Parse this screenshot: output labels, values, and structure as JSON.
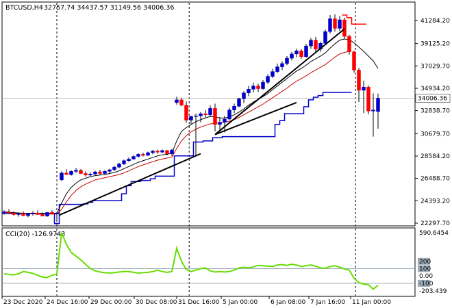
{
  "chart_data": [
    {
      "type": "candlestick",
      "title": "BTCUSD,H4",
      "ohlc_readout": "32757.74 34437.57 31149.56 34006.36",
      "current_price": "34006.36",
      "yticks": [
        "41284.20",
        "39125.20",
        "37029.70",
        "34934.20",
        "32838.70",
        "30679.70",
        "28584.20",
        "26488.70",
        "24393.20",
        "22297.70"
      ],
      "xticks": [
        "23 Dec 2020",
        "24 Dec 16:00",
        "29 Dec 00:00",
        "30 Dec 08:00",
        "31 Dec 16:00",
        "5 Jan 00:00",
        "6 Jan 08:00",
        "7 Jan 16:00",
        "11 Jan 00:00"
      ],
      "ylim": [
        22297.7,
        41284.2
      ],
      "candles": [
        [
          23300,
          23500,
          23100,
          23350
        ],
        [
          23350,
          23600,
          23150,
          23250
        ],
        [
          23250,
          23400,
          23000,
          23100
        ],
        [
          23100,
          23300,
          22900,
          23200
        ],
        [
          23200,
          23400,
          22950,
          23000
        ],
        [
          23000,
          23250,
          22850,
          23150
        ],
        [
          23150,
          23400,
          23000,
          23250
        ],
        [
          23250,
          23500,
          23100,
          23100
        ],
        [
          23100,
          23300,
          22950,
          22950
        ],
        [
          22950,
          23350,
          22900,
          23300
        ],
        [
          23300,
          23500,
          23100,
          23150
        ],
        [
          23150,
          23350,
          22500,
          23250
        ],
        [
          26350,
          27150,
          26250,
          27000
        ],
        [
          27000,
          27350,
          26850,
          26850
        ],
        [
          26850,
          27250,
          26750,
          27150
        ],
        [
          27150,
          27450,
          27000,
          27250
        ],
        [
          27250,
          27350,
          26900,
          26950
        ],
        [
          26950,
          27150,
          26650,
          26800
        ],
        [
          26800,
          27050,
          26700,
          26900
        ],
        [
          26900,
          27200,
          26800,
          27100
        ],
        [
          27100,
          27300,
          26850,
          26950
        ],
        [
          26950,
          27250,
          26850,
          27150
        ],
        [
          27150,
          27400,
          27000,
          27300
        ],
        [
          27300,
          27650,
          27200,
          27550
        ],
        [
          27550,
          27950,
          27450,
          27850
        ],
        [
          27850,
          28250,
          27750,
          28150
        ],
        [
          28150,
          28450,
          28050,
          28300
        ],
        [
          28300,
          28650,
          28250,
          28550
        ],
        [
          28550,
          28850,
          28450,
          28750
        ],
        [
          28750,
          28900,
          28550,
          28650
        ],
        [
          28650,
          29000,
          28600,
          28900
        ],
        [
          28900,
          29150,
          28750,
          29050
        ],
        [
          29050,
          29200,
          28800,
          28950
        ],
        [
          28950,
          29200,
          28850,
          29100
        ],
        [
          29100,
          29150,
          28650,
          28800
        ],
        [
          28800,
          29250,
          28600,
          29150
        ],
        [
          33600,
          34150,
          33400,
          33850
        ],
        [
          33850,
          34050,
          33250,
          33350
        ],
        [
          33350,
          33700,
          31700,
          31950
        ],
        [
          31950,
          32350,
          31550,
          32300
        ],
        [
          32300,
          32550,
          28600,
          32350
        ],
        [
          32350,
          32700,
          31750,
          32550
        ],
        [
          32550,
          32900,
          32200,
          32450
        ],
        [
          32450,
          33350,
          32250,
          33050
        ],
        [
          33050,
          33500,
          30900,
          31550
        ],
        [
          31550,
          32250,
          31050,
          31750
        ],
        [
          31750,
          32350,
          30800,
          32050
        ],
        [
          32050,
          33100,
          31950,
          32900
        ],
        [
          32900,
          33500,
          32600,
          33250
        ],
        [
          33250,
          34050,
          33150,
          33950
        ],
        [
          33950,
          34650,
          33550,
          34500
        ],
        [
          34500,
          35150,
          34200,
          34850
        ],
        [
          34850,
          35450,
          34550,
          35150
        ],
        [
          35150,
          35350,
          34600,
          34900
        ],
        [
          34900,
          35700,
          34800,
          35500
        ],
        [
          35500,
          36250,
          35350,
          36050
        ],
        [
          36050,
          36750,
          35900,
          36500
        ],
        [
          36500,
          37250,
          36350,
          36950
        ],
        [
          36950,
          37450,
          36650,
          37250
        ],
        [
          37250,
          37950,
          37100,
          37750
        ],
        [
          37750,
          38350,
          37550,
          38150
        ],
        [
          38150,
          38650,
          37850,
          38450
        ],
        [
          38450,
          38600,
          37700,
          37900
        ],
        [
          37900,
          39100,
          37800,
          38900
        ],
        [
          38900,
          39650,
          38650,
          39450
        ],
        [
          39450,
          39750,
          38300,
          38600
        ],
        [
          38600,
          39300,
          38350,
          39150
        ],
        [
          39150,
          40450,
          39000,
          40250
        ],
        [
          40250,
          41800,
          40050,
          41450
        ],
        [
          41450,
          41850,
          40250,
          40550
        ],
        [
          40550,
          41700,
          40300,
          41350
        ],
        [
          41350,
          41550,
          39600,
          39800
        ],
        [
          39800,
          39950,
          38100,
          38350
        ],
        [
          38350,
          38450,
          36400,
          36650
        ],
        [
          36650,
          36850,
          33650,
          34750
        ],
        [
          34750,
          35650,
          32600,
          35050
        ],
        [
          35050,
          35200,
          32500,
          32800
        ],
        [
          32800,
          34450,
          30400,
          32900
        ],
        [
          32757.74,
          34437.57,
          31149.56,
          34006.36
        ]
      ],
      "indicators": {
        "ma_fast": [
          23350,
          23330,
          23280,
          23250,
          23230,
          23200,
          23200,
          23210,
          23180,
          23200,
          23210,
          23210,
          24200,
          25050,
          25650,
          26050,
          26350,
          26500,
          26650,
          26750,
          26800,
          26850,
          26950,
          27050,
          27200,
          27400,
          27600,
          27800,
          28000,
          28150,
          28300,
          28450,
          28600,
          28700,
          28750,
          28850,
          30000,
          30900,
          31250,
          31550,
          31800,
          32000,
          32150,
          32300,
          32250,
          32150,
          32150,
          32250,
          32450,
          32700,
          33000,
          33350,
          33650,
          33900,
          34150,
          34450,
          34800,
          35150,
          35500,
          35850,
          36200,
          36550,
          36800,
          37100,
          37450,
          37700,
          37950,
          38250,
          38700,
          39100,
          39450,
          39550,
          39500,
          39200,
          38800,
          38400,
          37950,
          37500,
          36800
        ],
        "ma_slow": [
          23300,
          23280,
          23250,
          23220,
          23200,
          23180,
          23170,
          23160,
          23150,
          23150,
          23150,
          23150,
          23600,
          24300,
          24900,
          25350,
          25700,
          25950,
          26150,
          26350,
          26450,
          26550,
          26650,
          26750,
          26850,
          27000,
          27200,
          27400,
          27600,
          27750,
          27900,
          28050,
          28200,
          28300,
          28400,
          28500,
          29300,
          30000,
          30500,
          30850,
          31100,
          31300,
          31450,
          31600,
          31650,
          31700,
          31750,
          31850,
          32000,
          32200,
          32450,
          32700,
          32950,
          33200,
          33450,
          33750,
          34050,
          34350,
          34650,
          34950,
          35300,
          35600,
          35850,
          36100,
          36400,
          36650,
          36900,
          37150,
          37500,
          37850,
          38150,
          38300,
          38400,
          null,
          null,
          null,
          null,
          null,
          null
        ],
        "channel_low": [
          23200,
          23200,
          23200,
          23200,
          23200,
          23200,
          23200,
          23200,
          23200,
          23200,
          23200,
          22250,
          24050,
          24050,
          24050,
          24050,
          24050,
          24100,
          24250,
          24400,
          24400,
          24400,
          24400,
          24400,
          24400,
          25050,
          25800,
          26200,
          26200,
          26300,
          26300,
          26450,
          26700,
          26700,
          26700,
          26700,
          28600,
          28600,
          28600,
          28600,
          29900,
          29900,
          30000,
          30000,
          30300,
          30300,
          30400,
          30400,
          30400,
          30400,
          30400,
          30400,
          30400,
          30400,
          30400,
          30400,
          30400,
          31550,
          31900,
          32550,
          32550,
          32550,
          32550,
          33200,
          33850,
          34100,
          34250,
          34550,
          34550,
          34550,
          34550,
          34550,
          34550,
          null,
          null,
          null,
          null,
          null,
          null
        ],
        "channel_high": [
          null,
          null,
          null,
          null,
          null,
          null,
          null,
          null,
          null,
          null,
          null,
          null,
          null,
          null,
          null,
          null,
          null,
          null,
          null,
          null,
          null,
          null,
          null,
          null,
          null,
          null,
          null,
          null,
          null,
          null,
          null,
          null,
          null,
          null,
          null,
          null,
          null,
          null,
          null,
          null,
          null,
          null,
          null,
          null,
          null,
          null,
          null,
          null,
          null,
          null,
          null,
          null,
          null,
          null,
          null,
          null,
          null,
          null,
          null,
          null,
          null,
          null,
          null,
          null,
          null,
          null,
          null,
          null,
          null,
          null,
          null,
          41800,
          41550,
          40950,
          40950,
          40950,
          null,
          null,
          null
        ]
      },
      "trendlines": [
        {
          "x1": 11.5,
          "y1": 23050,
          "x2": 41,
          "y2": 28800
        },
        {
          "x1": 44,
          "y1": 30600,
          "x2": 71,
          "y2": 40500
        },
        {
          "x1": 44,
          "y1": 30600,
          "x2": 61,
          "y2": 33600
        }
      ]
    },
    {
      "type": "line",
      "title": "CCI(20) -126.9743",
      "yticks": [
        "590.6454",
        "200",
        "100",
        "0.00",
        "-100",
        "-203.439"
      ],
      "ylim": [
        -203.439,
        590.6454
      ],
      "levels": [
        100,
        -100
      ],
      "series": [
        {
          "values": [
            30,
            20,
            15,
            30,
            60,
            50,
            35,
            10,
            -15,
            -20,
            10,
            25,
            600,
            430,
            320,
            270,
            220,
            160,
            100,
            70,
            55,
            45,
            40,
            45,
            55,
            60,
            60,
            50,
            40,
            45,
            50,
            60,
            80,
            60,
            50,
            60,
            380,
            200,
            90,
            60,
            80,
            100,
            110,
            70,
            55,
            60,
            55,
            60,
            80,
            110,
            120,
            110,
            125,
            145,
            140,
            135,
            130,
            150,
            155,
            145,
            160,
            150,
            130,
            140,
            150,
            135,
            110,
            105,
            130,
            140,
            120,
            95,
            80,
            -30,
            -90,
            -110,
            -120,
            -180,
            -127
          ]
        }
      ]
    }
  ]
}
